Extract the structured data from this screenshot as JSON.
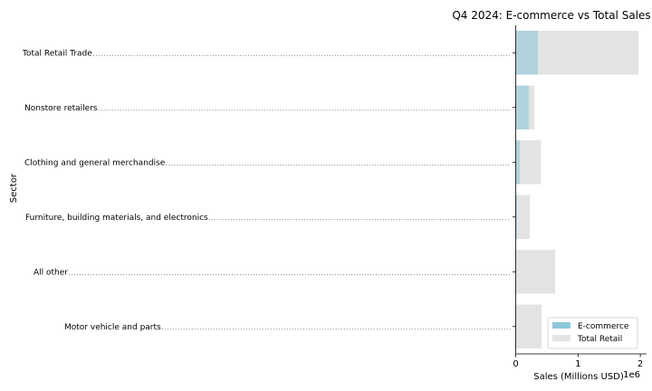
{
  "chart_data": {
    "type": "bar",
    "orientation": "horizontal",
    "title": "Q4 2024: E-commerce vs Total Sales",
    "xlabel": "Sales (Millions USD)",
    "ylabel": "Sector",
    "x_offset_label": "1e6",
    "xlim": [
      0,
      2100000
    ],
    "xticks": [
      0,
      1000000,
      2000000
    ],
    "xtick_labels": [
      "0",
      "1",
      "2"
    ],
    "categories": [
      "Total Retail Trade",
      "Nonstore retailers",
      "Clothing and general merchandise",
      "Furniture, building materials, and electronics",
      "All other",
      "Motor vehicle and parts"
    ],
    "series": [
      {
        "name": "Total Retail",
        "color": "#e3e3e3",
        "values": [
          1970000,
          300000,
          405000,
          225000,
          635000,
          415000
        ]
      },
      {
        "name": "E-commerce",
        "color": "#8ec8d8",
        "values": [
          355000,
          210000,
          65000,
          20000,
          5000,
          5000
        ]
      }
    ],
    "legend": {
      "placement": "lower-right",
      "entries": [
        "E-commerce",
        "Total Retail"
      ]
    },
    "grid": false
  }
}
